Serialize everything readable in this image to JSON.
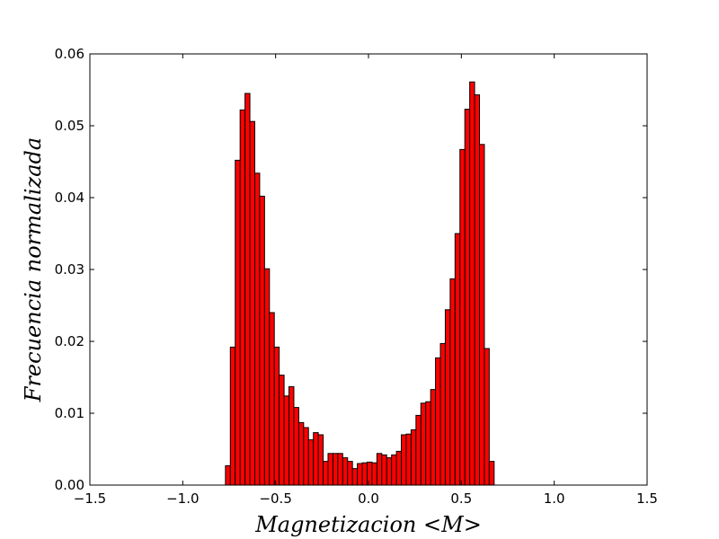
{
  "chart_data": {
    "type": "bar",
    "xlabel": "Magnetizacion <M>",
    "ylabel": "Frecuencia normalizada",
    "xlim": [
      -1.5,
      1.5
    ],
    "ylim": [
      0,
      0.06
    ],
    "xticks": [
      "−1.5",
      "−1.0",
      "−0.5",
      "0.0",
      "0.5",
      "1.0",
      "1.5"
    ],
    "xtick_values": [
      -1.5,
      -1.0,
      -0.5,
      0.0,
      0.5,
      1.0,
      1.5
    ],
    "yticks": [
      "0.00",
      "0.01",
      "0.02",
      "0.03",
      "0.04",
      "0.05",
      "0.06"
    ],
    "ytick_values": [
      0,
      0.01,
      0.02,
      0.03,
      0.04,
      0.05,
      0.06
    ],
    "grid": false,
    "bar_color": "#ff0000",
    "edge_color": "#000000",
    "bins": {
      "start": -0.77,
      "width": 0.0263,
      "values": [
        0.0027,
        0.0192,
        0.0452,
        0.0522,
        0.0545,
        0.0506,
        0.0434,
        0.0402,
        0.0301,
        0.024,
        0.0192,
        0.0153,
        0.0124,
        0.0137,
        0.0108,
        0.0087,
        0.008,
        0.0063,
        0.0073,
        0.007,
        0.0033,
        0.0044,
        0.0044,
        0.0044,
        0.0038,
        0.0033,
        0.0023,
        0.003,
        0.0031,
        0.0032,
        0.0031,
        0.0044,
        0.0042,
        0.0038,
        0.0042,
        0.0047,
        0.007,
        0.0071,
        0.0077,
        0.0097,
        0.0114,
        0.0116,
        0.0133,
        0.0177,
        0.0197,
        0.0244,
        0.0287,
        0.035,
        0.0467,
        0.0523,
        0.0561,
        0.0543,
        0.0474,
        0.019,
        0.0033
      ]
    }
  }
}
